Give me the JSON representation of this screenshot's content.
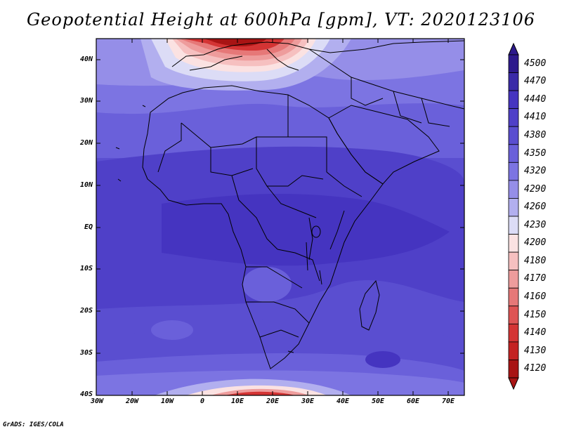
{
  "title": "Geopotential Height at 600hPa [gpm], VT: 2020123106",
  "lat_labels": [
    "40N",
    "30N",
    "20N",
    "10N",
    "EQ",
    "10S",
    "20S",
    "30S",
    "40S"
  ],
  "lon_labels": [
    "30W",
    "20W",
    "10W",
    "0",
    "10E",
    "20E",
    "30E",
    "40E",
    "50E",
    "60E",
    "70E"
  ],
  "colorbar": {
    "levels": [
      "4500",
      "4470",
      "4440",
      "4410",
      "4380",
      "4350",
      "4320",
      "4290",
      "4260",
      "4230",
      "4200",
      "4180",
      "4170",
      "4160",
      "4150",
      "4140",
      "4130",
      "4120"
    ],
    "colors": [
      "#2d1a8c",
      "#3a2aa8",
      "#4534c0",
      "#4f40c8",
      "#5a4ed0",
      "#6a60da",
      "#7c74e2",
      "#958ee8",
      "#b2afef",
      "#dcdcf6",
      "#fbe2e2",
      "#f6c0c0",
      "#ee9c9c",
      "#e67878",
      "#de5454",
      "#d43434",
      "#c42222",
      "#a81414"
    ]
  },
  "credit": "GrADS: IGES/COLA"
}
